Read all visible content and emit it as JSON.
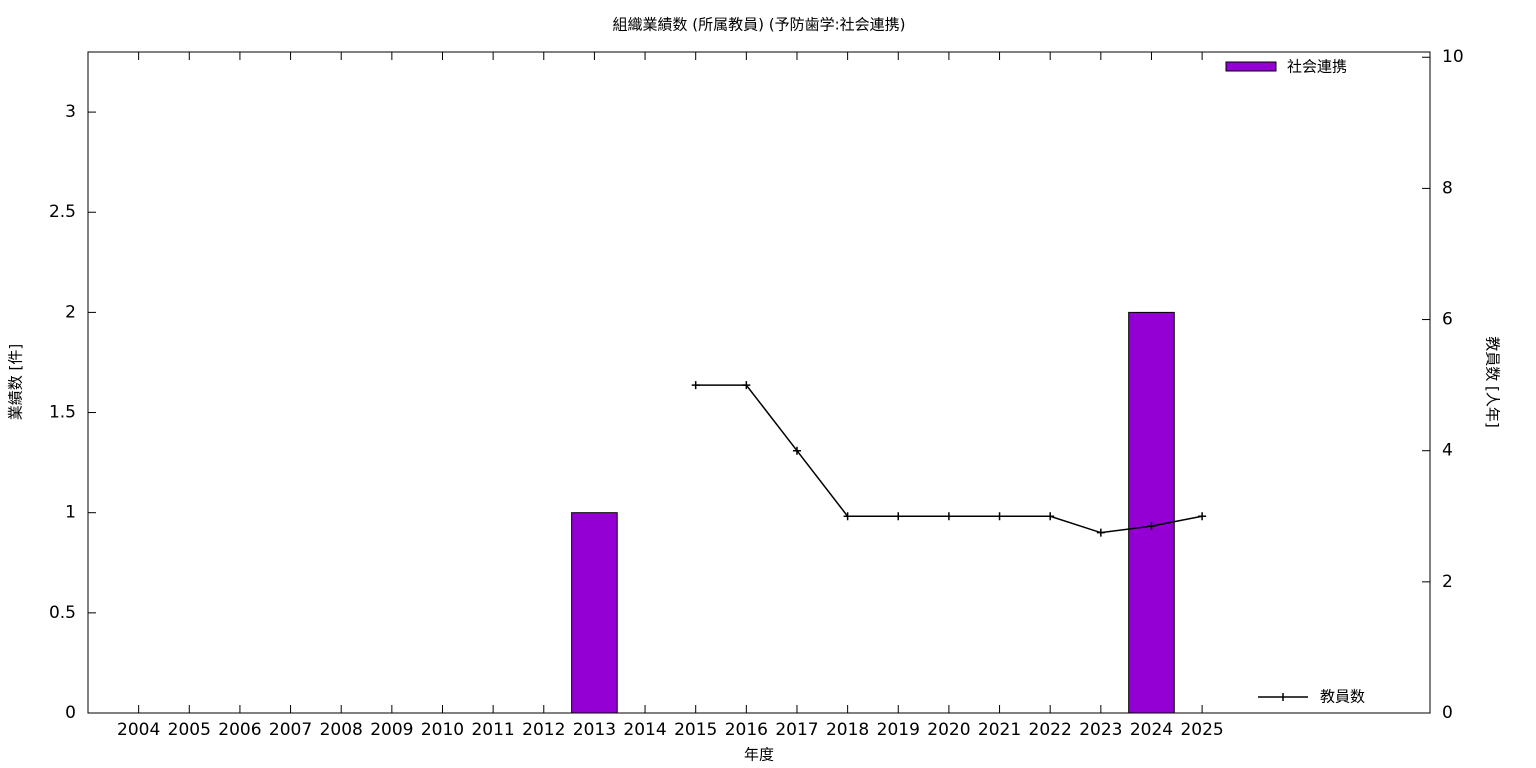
{
  "chart_data": {
    "type": "bar+line",
    "title": "組織業績数 (所属教員) (予防歯学:社会連携)",
    "xlabel": "年度",
    "ylabel": "業績数 [件]",
    "y2label": "教員数 [人年]",
    "xlim": [
      2003,
      2029.5
    ],
    "xticks": [
      2004,
      2005,
      2006,
      2007,
      2008,
      2009,
      2010,
      2011,
      2012,
      2013,
      2014,
      2015,
      2016,
      2017,
      2018,
      2019,
      2020,
      2021,
      2022,
      2023,
      2024,
      2025
    ],
    "ylim": [
      0,
      3.3
    ],
    "yticks": [
      0,
      0.5,
      1,
      1.5,
      2,
      2.5,
      3
    ],
    "y2lim": [
      0,
      10.08
    ],
    "y2ticks": [
      0,
      2,
      4,
      6,
      8,
      10
    ],
    "series": [
      {
        "name": "社会連携",
        "type": "bar",
        "color": "#9400d3",
        "x": [
          2013,
          2024
        ],
        "values": [
          1,
          2
        ]
      },
      {
        "name": "教員数",
        "type": "line",
        "axis": "y2",
        "color": "#000000",
        "x": [
          2015,
          2016,
          2017,
          2018,
          2019,
          2020,
          2021,
          2022,
          2023,
          2024,
          2025
        ],
        "values": [
          5,
          5,
          4,
          3,
          3,
          3,
          3,
          3,
          2.75,
          2.85,
          3
        ]
      }
    ]
  }
}
